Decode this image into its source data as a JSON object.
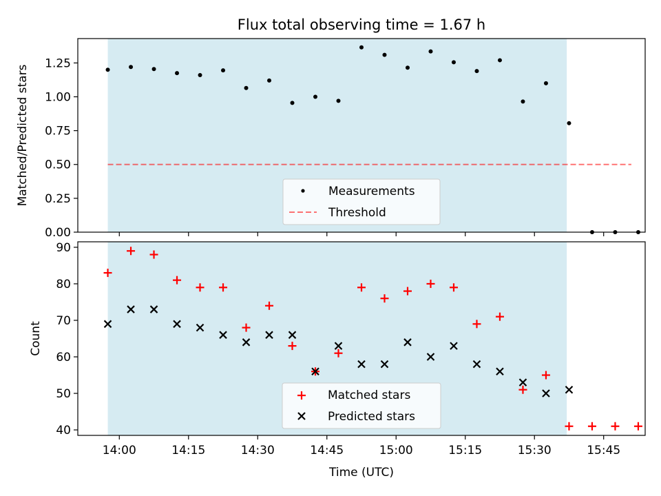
{
  "chart_data": [
    {
      "type": "scatter",
      "title": "Flux total observing time = 1.67 h",
      "ylabel": "Matched/Predicted stars",
      "ylim": [
        0,
        1.43
      ],
      "yticks": [
        0.0,
        0.25,
        0.5,
        0.75,
        1.0,
        1.25
      ],
      "ytick_labels": [
        "0.00",
        "0.25",
        "0.50",
        "0.75",
        "1.00",
        "1.25"
      ],
      "observing_window_min": [
        837.5,
        937
      ],
      "threshold": 0.5,
      "threshold_range_min": [
        837.5,
        951
      ],
      "legend_labels": [
        "Measurements",
        "Threshold"
      ],
      "legend_position": "lower-center",
      "series": [
        {
          "name": "Measurements",
          "x_min": [
            837.5,
            842.5,
            847.5,
            852.5,
            857.5,
            862.5,
            867.5,
            872.5,
            877.5,
            882.5,
            887.5,
            892.5,
            897.5,
            902.5,
            907.5,
            912.5,
            917.5,
            922.5,
            927.5,
            932.5,
            937.5,
            942.5,
            947.5,
            952.5
          ],
          "values": [
            1.2,
            1.22,
            1.205,
            1.175,
            1.16,
            1.195,
            1.065,
            1.12,
            0.955,
            1.0,
            0.97,
            1.365,
            1.31,
            1.215,
            1.335,
            1.255,
            1.19,
            1.27,
            0.965,
            1.1,
            0.805,
            0.0,
            0.0,
            0.0
          ]
        }
      ]
    },
    {
      "type": "scatter",
      "xlabel": "Time (UTC)",
      "ylabel": "Count",
      "ylim": [
        38.5,
        91.5
      ],
      "yticks": [
        40,
        50,
        60,
        70,
        80,
        90
      ],
      "xlim_min": [
        831,
        954
      ],
      "xticks_min": [
        840,
        855,
        870,
        885,
        900,
        915,
        930,
        945
      ],
      "xtick_labels": [
        "14:00",
        "14:15",
        "14:30",
        "14:45",
        "15:00",
        "15:15",
        "15:30",
        "15:45"
      ],
      "observing_window_min": [
        837.5,
        937
      ],
      "legend_labels": [
        "Matched stars",
        "Predicted stars"
      ],
      "legend_position": "lower-center",
      "series": [
        {
          "name": "Matched stars",
          "marker": "+",
          "color": "#ff0000",
          "x_min": [
            837.5,
            842.5,
            847.5,
            852.5,
            857.5,
            862.5,
            867.5,
            872.5,
            877.5,
            882.5,
            887.5,
            892.5,
            897.5,
            902.5,
            907.5,
            912.5,
            917.5,
            922.5,
            927.5,
            932.5,
            937.5,
            942.5,
            947.5,
            952.5
          ],
          "values": [
            83,
            89,
            88,
            81,
            79,
            79,
            68,
            74,
            63,
            56,
            61,
            79,
            76,
            78,
            80,
            79,
            69,
            71,
            51,
            55,
            41,
            41,
            41,
            41
          ]
        },
        {
          "name": "Predicted stars",
          "marker": "x",
          "color": "#000000",
          "x_min": [
            837.5,
            842.5,
            847.5,
            852.5,
            857.5,
            862.5,
            867.5,
            872.5,
            877.5,
            882.5,
            887.5,
            892.5,
            897.5,
            902.5,
            907.5,
            912.5,
            917.5,
            922.5,
            927.5,
            932.5,
            937.5
          ],
          "values": [
            69,
            73,
            73,
            69,
            68,
            66,
            64,
            66,
            66,
            56,
            63,
            58,
            58,
            64,
            60,
            63,
            58,
            56,
            53,
            50,
            51
          ]
        }
      ]
    }
  ],
  "colors": {
    "window_fill": "#add8e6",
    "threshold_line": "#ff0000",
    "measurement_marker": "#000000",
    "matched_marker": "#ff0000",
    "predicted_marker": "#000000"
  }
}
